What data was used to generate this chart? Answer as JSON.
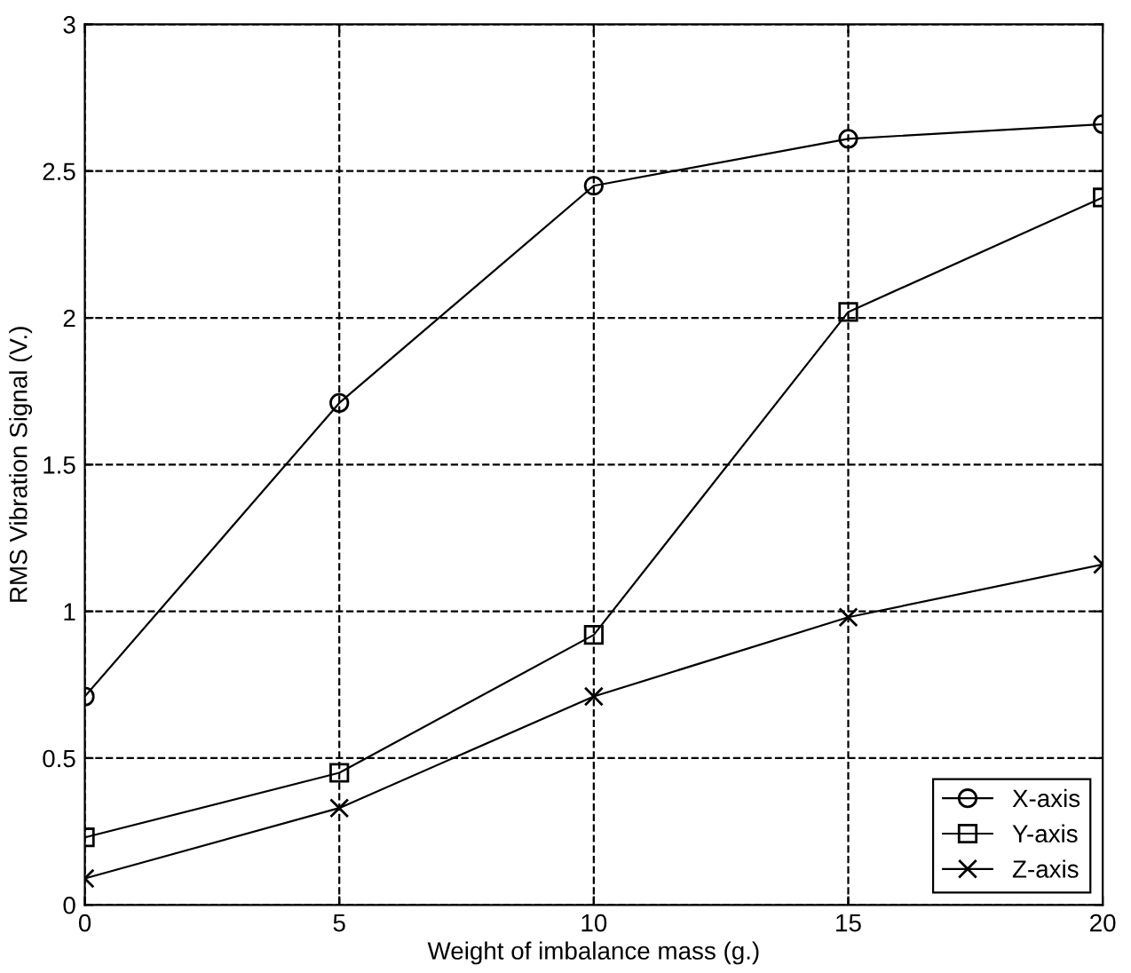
{
  "chart_data": {
    "type": "line",
    "xlabel": "Weight of imbalance mass (g.)",
    "ylabel": "RMS Vibration Signal (V.)",
    "x": [
      0,
      5,
      10,
      15,
      20
    ],
    "series": [
      {
        "name": "X-axis",
        "color": "#000000",
        "marker": "circle",
        "values": [
          0.71,
          1.71,
          2.45,
          2.61,
          2.66
        ]
      },
      {
        "name": "Y-axis",
        "color": "#000000",
        "marker": "square",
        "values": [
          0.23,
          0.45,
          0.92,
          2.02,
          2.41
        ]
      },
      {
        "name": "Z-axis",
        "color": "#000000",
        "marker": "cross",
        "values": [
          0.09,
          0.33,
          0.71,
          0.98,
          1.16
        ]
      }
    ],
    "xlim": [
      0,
      20
    ],
    "xticks": [
      0,
      5,
      10,
      15,
      20
    ],
    "ylim": [
      0,
      3
    ],
    "yticks": [
      0,
      {
        "value": 0.5,
        "label": "0.5"
      },
      1,
      {
        "value": 1.5,
        "label": "1.5"
      },
      2,
      {
        "value": 2.5,
        "label": "2.5"
      },
      3
    ],
    "grid": true,
    "legend": "bottom right",
    "line_style": "solid"
  }
}
